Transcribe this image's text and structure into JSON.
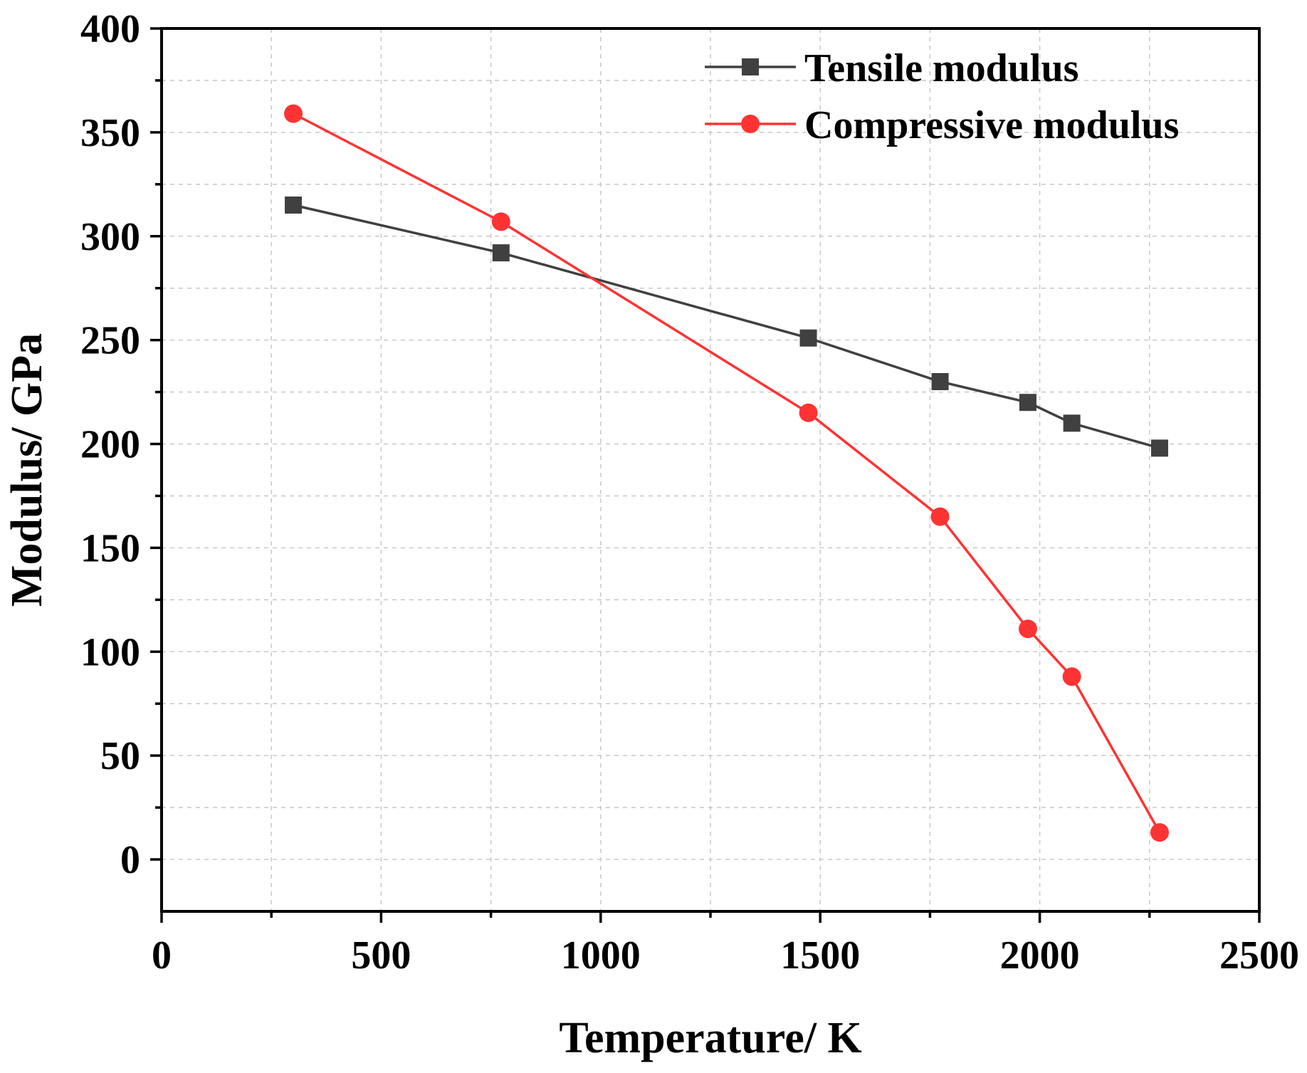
{
  "chart_data": {
    "type": "line",
    "xlabel": "Temperature/ K",
    "ylabel": "Modulus/ GPa",
    "xlim": [
      0,
      2500
    ],
    "ylim": [
      -25,
      400
    ],
    "xticks": [
      0,
      500,
      1000,
      1500,
      2000,
      2500
    ],
    "yticks": [
      0,
      50,
      100,
      150,
      200,
      250,
      300,
      350,
      400
    ],
    "grid": true,
    "legend_position": "top-right",
    "series": [
      {
        "name": "Tensile modulus",
        "color": "#404040",
        "marker": "square",
        "x": [
          300,
          773,
          1473,
          1773,
          1973,
          2073,
          2273
        ],
        "values": [
          315,
          292,
          251,
          230,
          220,
          210,
          198
        ]
      },
      {
        "name": "Compressive modulus",
        "color": "#ff3333",
        "marker": "circle",
        "x": [
          300,
          773,
          1473,
          1773,
          1973,
          2073,
          2273
        ],
        "values": [
          359,
          307,
          215,
          165,
          111,
          88,
          13
        ]
      }
    ]
  }
}
